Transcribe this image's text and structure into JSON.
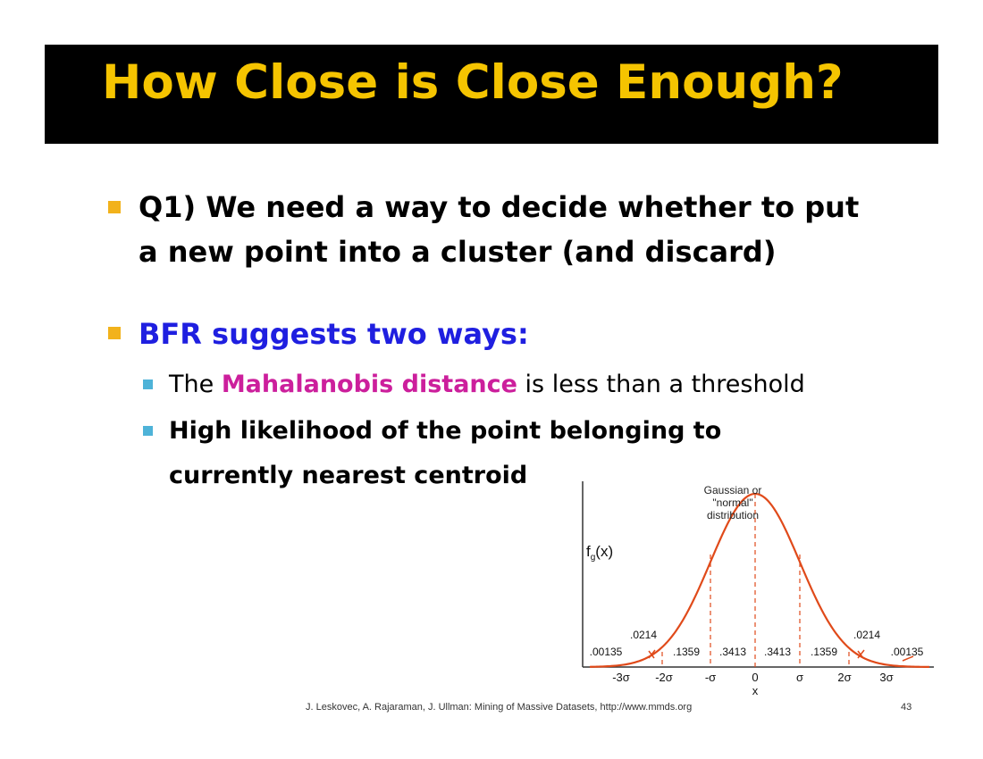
{
  "slide": {
    "title": "How Close is Close Enough?",
    "bullets": [
      {
        "line1": "Q1) We need a way to decide whether to put",
        "line2": "a new point into a cluster (and discard)"
      },
      {
        "text": "BFR suggests two ways:",
        "color": "#1f1fe0"
      }
    ],
    "sub_bullets": [
      {
        "prefix": "The ",
        "highlight": "Mahalanobis distance",
        "highlight_color": "#cc1f9c",
        "suffix": " is less than a threshold"
      },
      {
        "line1": "High likelihood of the point belonging to",
        "line2": "currently nearest centroid"
      }
    ],
    "footer": "J. Leskovec, A. Rajaraman, J. Ullman: Mining of Massive Datasets, http://www.mmds.org",
    "page_number": "43"
  },
  "colors": {
    "title_bg": "#000000",
    "title_text": "#f5c400",
    "bullet": "#f2b21b",
    "sub_bullet": "#4eb3d8",
    "curve": "#e04a1a"
  },
  "figure": {
    "curve_label_lines": [
      "Gaussian or",
      "\"normal\"",
      "distribution"
    ],
    "y_label_f": "f",
    "y_label_sub": "g",
    "y_label_rest": "(x)",
    "x_label": "x",
    "tick_labels": [
      "-3σ",
      "-2σ",
      "-σ",
      "0",
      "σ",
      "2σ",
      "3σ"
    ],
    "region_labels": [
      ".00135",
      ".1359",
      ".3413",
      ".3413",
      ".1359",
      ".00135"
    ],
    "tail_labels": [
      ".0214",
      ".0214"
    ]
  }
}
